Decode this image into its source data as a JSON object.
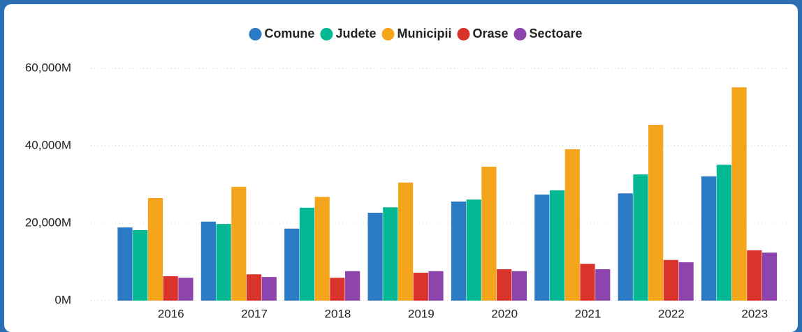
{
  "chart_data": {
    "type": "bar",
    "categories": [
      "2016",
      "2017",
      "2018",
      "2019",
      "2020",
      "2021",
      "2022",
      "2023"
    ],
    "series": [
      {
        "name": "Comune",
        "color": "#2b7bc4",
        "values": [
          18900,
          20400,
          18600,
          22700,
          25600,
          27400,
          27700,
          32100
        ]
      },
      {
        "name": "Judete",
        "color": "#05b894",
        "values": [
          18200,
          19800,
          24000,
          24100,
          26100,
          28500,
          32600,
          35100
        ]
      },
      {
        "name": "Municipii",
        "color": "#f4a51c",
        "values": [
          26500,
          29400,
          26800,
          30500,
          34600,
          39100,
          45400,
          55100
        ]
      },
      {
        "name": "Orase",
        "color": "#d9342b",
        "values": [
          6300,
          6800,
          5900,
          7200,
          8100,
          9500,
          10500,
          13000
        ]
      },
      {
        "name": "Sectoare",
        "color": "#8e44ad",
        "values": [
          5900,
          6100,
          7600,
          7600,
          7600,
          8100,
          9900,
          12400
        ]
      }
    ],
    "ylim": [
      0,
      60000
    ],
    "yticks": [
      {
        "value": 0,
        "label": "0M"
      },
      {
        "value": 20000,
        "label": "20,000M"
      },
      {
        "value": 40000,
        "label": "40,000M"
      },
      {
        "value": 60000,
        "label": "60,000M"
      }
    ],
    "grid": true,
    "legend": "top"
  }
}
